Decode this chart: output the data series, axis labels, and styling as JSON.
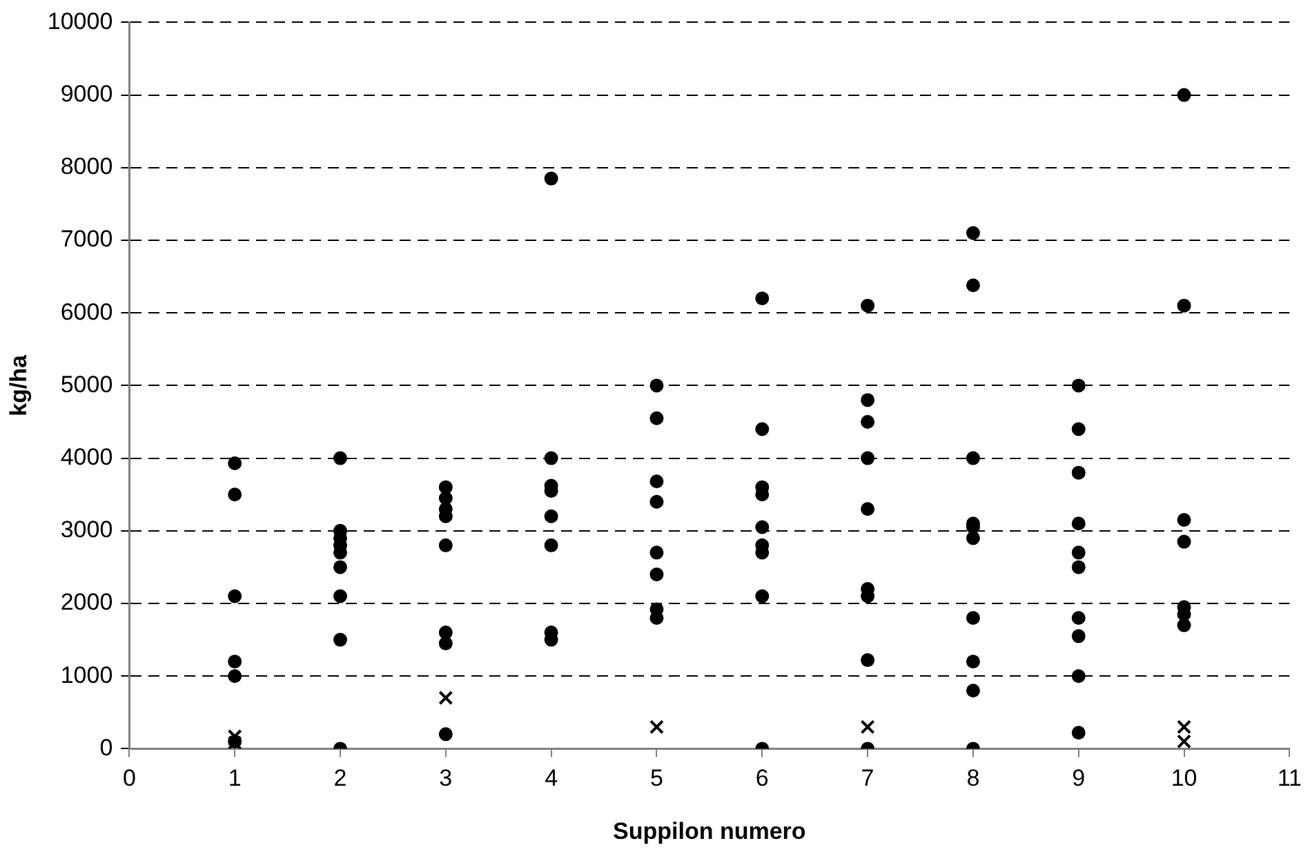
{
  "chart_data": {
    "type": "scatter",
    "xlabel": "Suppilon numero",
    "ylabel": "kg/ha",
    "xlim": [
      0,
      11
    ],
    "xticks": [
      0,
      1,
      2,
      3,
      4,
      5,
      6,
      7,
      8,
      9,
      10,
      11
    ],
    "ylim": [
      0,
      10000
    ],
    "yticks": [
      0,
      1000,
      2000,
      3000,
      4000,
      5000,
      6000,
      7000,
      8000,
      9000,
      10000
    ],
    "grid": "y",
    "legend": false,
    "series": [
      {
        "color": "#000000",
        "marker": "circle",
        "x": [
          1,
          1,
          1,
          1,
          1,
          1,
          2,
          2,
          2,
          2,
          2,
          2,
          2,
          2,
          2,
          3,
          3,
          3,
          3,
          3,
          3,
          3,
          3,
          4,
          4,
          4,
          4,
          4,
          4,
          4,
          4,
          5,
          5,
          5,
          5,
          5,
          5,
          5,
          5,
          6,
          6,
          6,
          6,
          6,
          6,
          6,
          6,
          6,
          7,
          7,
          7,
          7,
          7,
          7,
          7,
          7,
          7,
          8,
          8,
          8,
          8,
          8,
          8,
          8,
          8,
          8,
          8,
          9,
          9,
          9,
          9,
          9,
          9,
          9,
          9,
          9,
          9,
          10,
          10,
          10,
          10,
          10,
          10,
          10
        ],
        "values": [
          3930,
          3500,
          2100,
          1200,
          1000,
          100,
          4000,
          3000,
          2900,
          2800,
          2700,
          2500,
          2100,
          1500,
          0,
          3600,
          3450,
          3300,
          3200,
          2800,
          1600,
          1450,
          200,
          7850,
          4000,
          3620,
          3550,
          3200,
          2800,
          1600,
          1500,
          5000,
          4550,
          3680,
          3400,
          2700,
          2400,
          1920,
          1800,
          6200,
          4400,
          3600,
          3500,
          3050,
          2800,
          2700,
          2100,
          0,
          6100,
          4800,
          4500,
          4000,
          3300,
          2200,
          2100,
          1220,
          0,
          7100,
          6380,
          4000,
          3100,
          3050,
          2900,
          1800,
          1200,
          800,
          0,
          5000,
          4400,
          3800,
          3100,
          2700,
          2500,
          1800,
          1550,
          1000,
          220,
          9000,
          6100,
          3150,
          2850,
          1950,
          1850,
          1700
        ]
      },
      {
        "color": "#000000",
        "marker": "cross",
        "x": [
          1,
          1,
          3,
          5,
          7,
          10,
          10
        ],
        "values": [
          170,
          80,
          700,
          300,
          300,
          300,
          100
        ]
      }
    ]
  }
}
